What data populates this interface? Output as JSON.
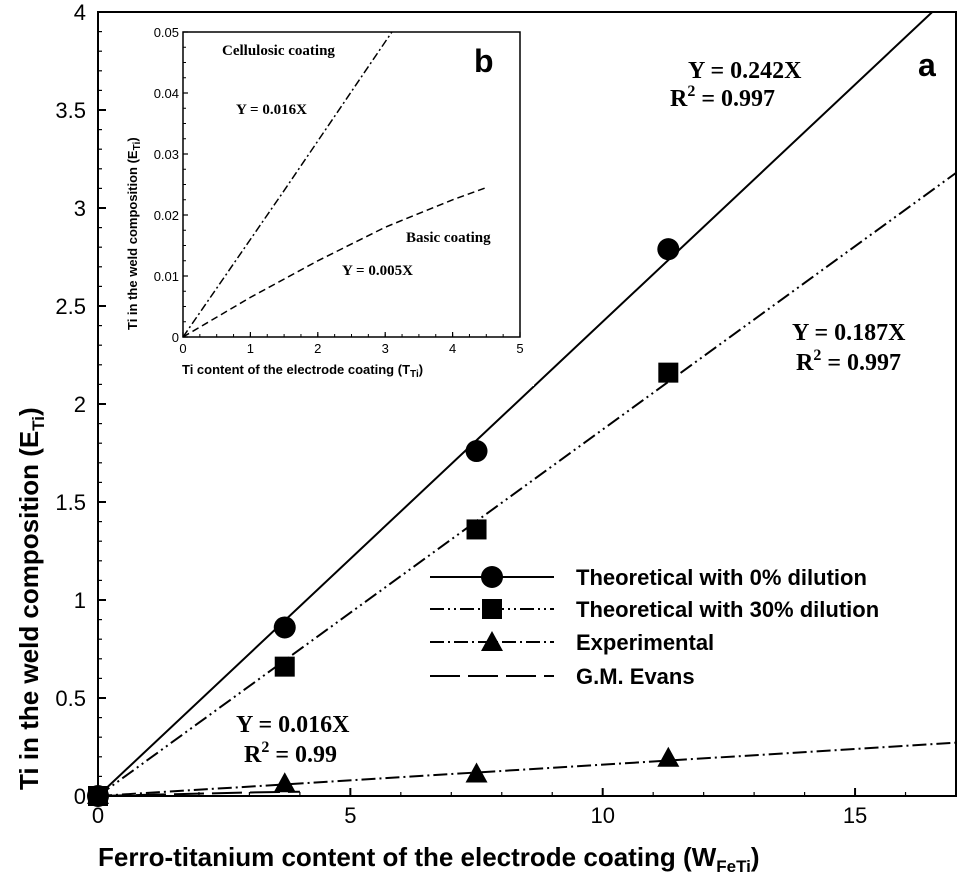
{
  "chart_data": [
    {
      "panel": "a",
      "type": "line",
      "xlabel": "Ferro-titanium content of the electrode coating (",
      "xlabel_sym": "W",
      "xlabel_sub": "FeTi",
      "xlabel_close": ")",
      "ylabel": "Ti in the weld composition (",
      "ylabel_sym": "E",
      "ylabel_sub": "Ti",
      "ylabel_close": ")",
      "xlim": [
        0,
        17
      ],
      "ylim": [
        0,
        4
      ],
      "xticks": [
        "0",
        "5",
        "10",
        "15"
      ],
      "yticks": [
        "0",
        "0.5",
        "1",
        "1.5",
        "2",
        "2.5",
        "3",
        "3.5",
        "4"
      ],
      "series": [
        {
          "name": "Theoretical with 0% dilution",
          "marker": "circle",
          "dash": "solid",
          "fit_slope": 0.242,
          "points": [
            [
              0,
              0
            ],
            [
              3.7,
              0.86
            ],
            [
              7.5,
              1.76
            ],
            [
              11.3,
              2.79
            ]
          ]
        },
        {
          "name": "Theoretical with 30% dilution",
          "marker": "square",
          "dash": "dash-dot-dot",
          "fit_slope": 0.187,
          "points": [
            [
              0,
              0
            ],
            [
              3.7,
              0.66
            ],
            [
              7.5,
              1.36
            ],
            [
              11.3,
              2.16
            ]
          ]
        },
        {
          "name": "Experimental",
          "marker": "triangle",
          "dash": "dash-dot",
          "fit_slope": 0.016,
          "points": [
            [
              0,
              0
            ],
            [
              3.7,
              0.06
            ],
            [
              7.5,
              0.11
            ],
            [
              11.3,
              0.19
            ]
          ]
        },
        {
          "name": "G.M. Evans",
          "marker": "none",
          "dash": "long-dash",
          "points": [
            [
              0,
              0
            ],
            [
              1,
              0.006
            ],
            [
              2,
              0.012
            ],
            [
              3,
              0.018
            ],
            [
              4,
              0.022
            ]
          ]
        }
      ],
      "annotations": [
        {
          "y": "Y = 0.242X",
          "r2_pre": "R",
          "r2_sup": "2",
          "r2_post": " = 0.997"
        },
        {
          "y": "Y = 0.187X",
          "r2_pre": "R",
          "r2_sup": "2",
          "r2_post": " = 0.997"
        },
        {
          "y": "Y = 0.016X",
          "r2_pre": "R",
          "r2_sup": "2",
          "r2_post": " = 0.99"
        }
      ]
    },
    {
      "panel": "b",
      "type": "line",
      "xlabel": "Ti content of the electrode coating (",
      "xlabel_sym": "T",
      "xlabel_sub": "Ti",
      "xlabel_close": ")",
      "ylabel": "Ti in the weld composition (",
      "ylabel_sym": "E",
      "ylabel_sub": "Ti",
      "ylabel_close": ")",
      "xlim": [
        0,
        5
      ],
      "ylim": [
        0,
        0.05
      ],
      "xticks": [
        "0",
        "1",
        "2",
        "3",
        "4",
        "5"
      ],
      "yticks": [
        "0",
        "0.01",
        "0.02",
        "0.03",
        "0.04",
        "0.05"
      ],
      "series": [
        {
          "name": "Cellulosic coating",
          "dash": "dash-dot",
          "points": [
            [
              0,
              0
            ],
            [
              1.5,
              0.024
            ],
            [
              3.1,
              0.05
            ]
          ]
        },
        {
          "name": "Basic coating",
          "dash": "dash",
          "points": [
            [
              0,
              0
            ],
            [
              1,
              0.0065
            ],
            [
              2,
              0.0125
            ],
            [
              3,
              0.018
            ],
            [
              4,
              0.0225
            ],
            [
              4.5,
              0.0245
            ]
          ]
        }
      ],
      "annotations": [
        {
          "label": "Cellulosic coating",
          "eq": "Y = 0.016X"
        },
        {
          "label": "Basic coating",
          "eq": "Y = 0.005X"
        }
      ]
    }
  ]
}
